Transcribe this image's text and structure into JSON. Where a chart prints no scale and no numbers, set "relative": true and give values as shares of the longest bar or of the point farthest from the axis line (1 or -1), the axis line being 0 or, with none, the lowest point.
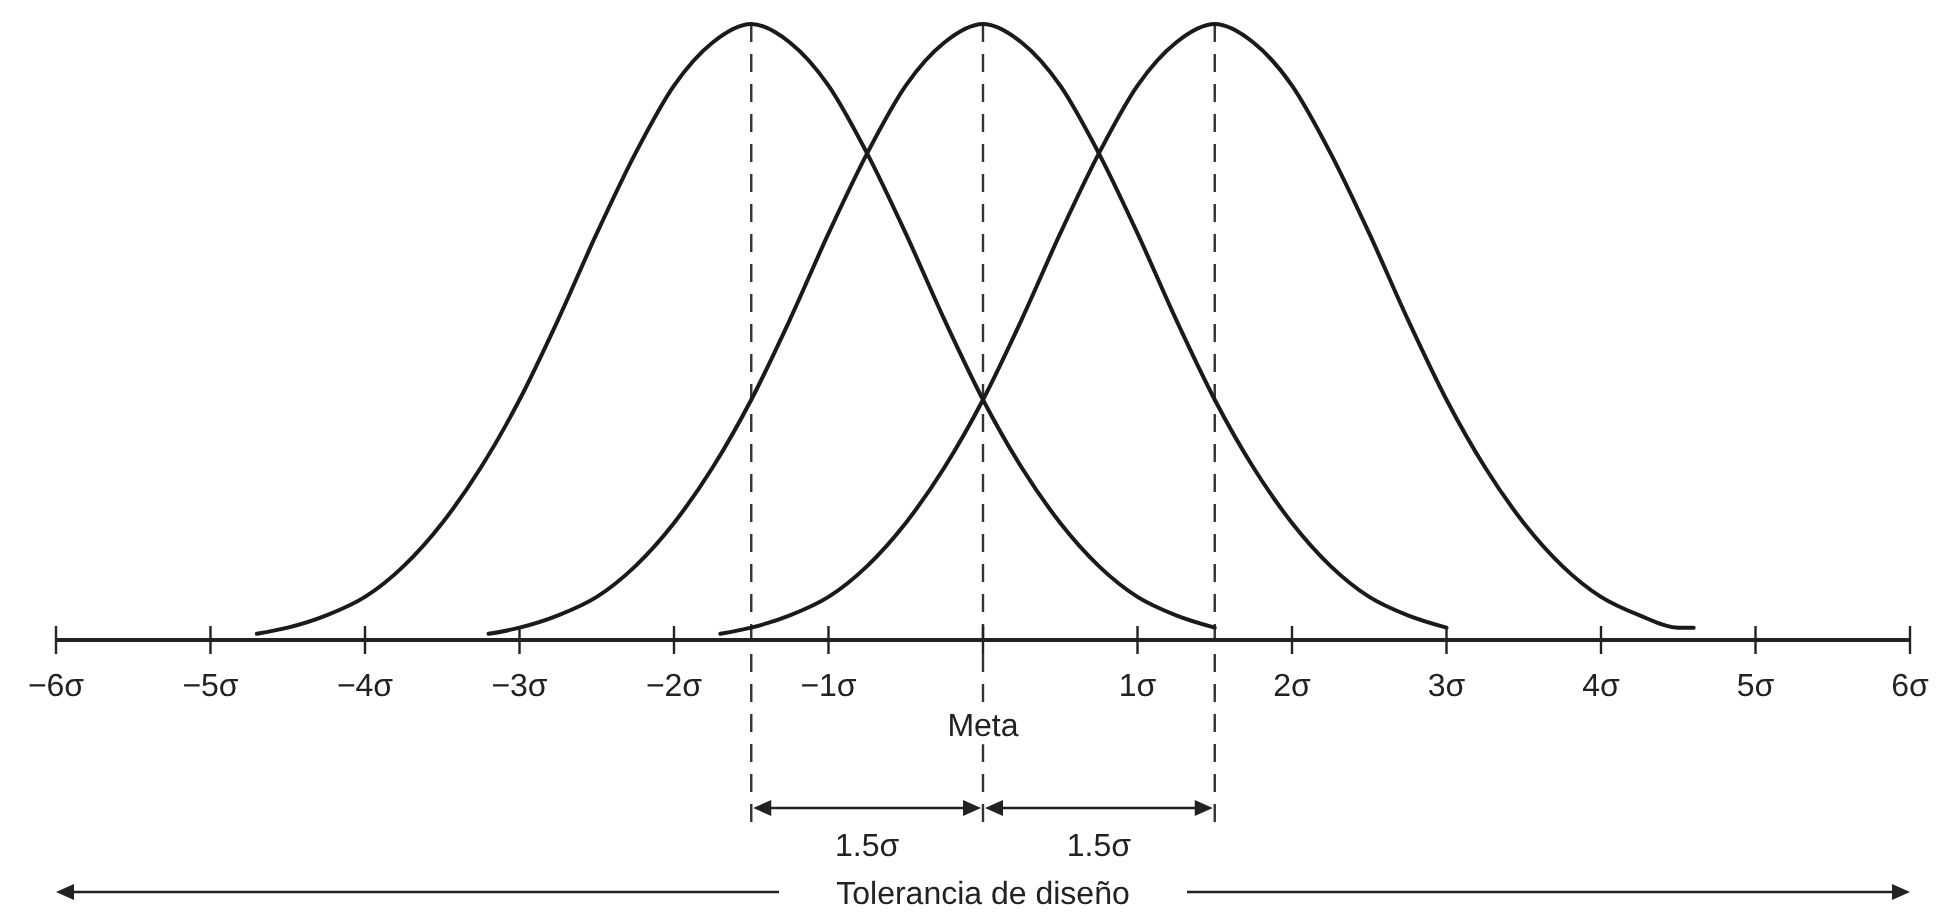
{
  "chart_data": {
    "type": "line",
    "relative": true,
    "xlim": [
      -6,
      6
    ],
    "xticks": [
      {
        "value": -6,
        "label": "−6σ"
      },
      {
        "value": -5,
        "label": "−5σ"
      },
      {
        "value": -4,
        "label": "−4σ"
      },
      {
        "value": -3,
        "label": "−3σ"
      },
      {
        "value": -2,
        "label": "−2σ"
      },
      {
        "value": -1,
        "label": "−1σ"
      },
      {
        "value": 0,
        "label": null
      },
      {
        "value": 1,
        "label": "1σ"
      },
      {
        "value": 2,
        "label": "2σ"
      },
      {
        "value": 3,
        "label": "3σ"
      },
      {
        "value": 4,
        "label": "4σ"
      },
      {
        "value": 5,
        "label": "5σ"
      },
      {
        "value": 6,
        "label": "6σ"
      }
    ],
    "series": [
      {
        "color": "#1a1a1a",
        "x": [
          -4.7,
          -4.5,
          -4.25,
          -4,
          -3.75,
          -3.5,
          -3.25,
          -3,
          -2.75,
          -2.5,
          -2.25,
          -2,
          -1.75,
          -1.5,
          -1.25,
          -1,
          -0.75,
          -0.5,
          -0.25,
          0,
          0.25,
          0.5,
          0.75,
          1,
          1.25,
          1.5
        ],
        "values": [
          0.01,
          0.02,
          0.04,
          0.07,
          0.12,
          0.19,
          0.28,
          0.39,
          0.52,
          0.66,
          0.79,
          0.9,
          0.97,
          1,
          0.97,
          0.9,
          0.79,
          0.66,
          0.52,
          0.39,
          0.28,
          0.19,
          0.12,
          0.07,
          0.04,
          0.02
        ]
      },
      {
        "color": "#1a1a1a",
        "x": [
          -3.2,
          -3,
          -2.75,
          -2.5,
          -2.25,
          -2,
          -1.75,
          -1.5,
          -1.25,
          -1,
          -0.75,
          -0.5,
          -0.25,
          0,
          0.25,
          0.5,
          0.75,
          1,
          1.25,
          1.5,
          1.75,
          2,
          2.25,
          2.5,
          2.75,
          3
        ],
        "values": [
          0.01,
          0.02,
          0.04,
          0.07,
          0.12,
          0.19,
          0.28,
          0.39,
          0.52,
          0.66,
          0.79,
          0.9,
          0.97,
          1,
          0.97,
          0.9,
          0.79,
          0.66,
          0.52,
          0.39,
          0.28,
          0.19,
          0.12,
          0.07,
          0.04,
          0.02
        ]
      },
      {
        "color": "#1a1a1a",
        "x": [
          -1.7,
          -1.5,
          -1.25,
          -1,
          -0.75,
          -0.5,
          -0.25,
          0,
          0.25,
          0.5,
          0.75,
          1,
          1.25,
          1.5,
          1.75,
          2,
          2.25,
          2.5,
          2.75,
          3,
          3.25,
          3.5,
          3.75,
          4,
          4.25,
          4.5,
          4.6
        ],
        "values": [
          0.01,
          0.02,
          0.04,
          0.07,
          0.12,
          0.19,
          0.28,
          0.39,
          0.52,
          0.66,
          0.79,
          0.9,
          0.97,
          1,
          0.97,
          0.9,
          0.79,
          0.66,
          0.52,
          0.39,
          0.28,
          0.19,
          0.12,
          0.07,
          0.04,
          0.02,
          0.02
        ]
      }
    ],
    "ref_lines": [
      {
        "axis": "x",
        "value": -1.5,
        "line_style": "dashed"
      },
      {
        "axis": "x",
        "value": 0,
        "line_style": "dashed"
      },
      {
        "axis": "x",
        "value": 1.5,
        "line_style": "dashed"
      }
    ],
    "annotations": [
      "Meta",
      "1.5σ",
      "1.5σ",
      "Tolerancia de diseño"
    ]
  }
}
